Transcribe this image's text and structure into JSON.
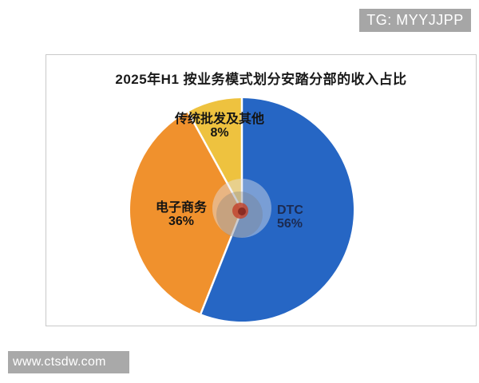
{
  "badge": {
    "text": "TG: MYYJJPP",
    "bg": "#a6a6a6",
    "color": "#ffffff"
  },
  "watermark": {
    "text": "www.ctsdw.com",
    "bg": "#a9a9a9",
    "color": "#ffffff"
  },
  "chart_data": {
    "type": "pie",
    "title": "2025年H1 按业务模式划分安踏分部的收入占比",
    "start_angle": "top",
    "direction": "clockwise",
    "legend": "none",
    "labels_on_chart": true,
    "unit": "%",
    "series": [
      {
        "key": "dtc",
        "name": "DTC",
        "value": 56,
        "percent_label": "56%",
        "color": "#2666c4"
      },
      {
        "key": "ecommerce",
        "name": "电子商务",
        "value": 36,
        "percent_label": "36%",
        "color": "#f0912d"
      },
      {
        "key": "wholesale",
        "name": "传统批发及其他",
        "value": 8,
        "percent_label": "8%",
        "color": "#eec23f"
      }
    ]
  }
}
